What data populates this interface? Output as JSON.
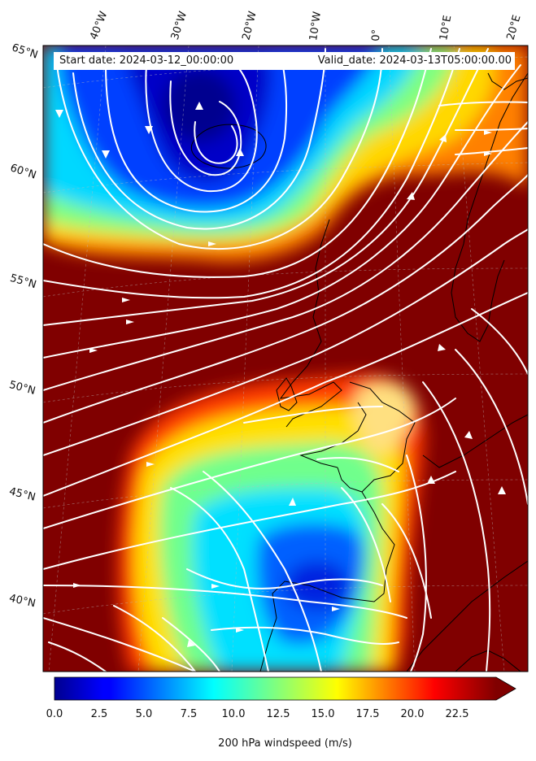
{
  "map": {
    "start_label": "Start date: 2024-03-12_00:00:00",
    "valid_label": "Valid_date: 2024-03-13T05:00:00.00",
    "longitude_labels": [
      "40°W",
      "30°W",
      "20°W",
      "10°W",
      "0°",
      "10°E",
      "20°E"
    ],
    "latitude_labels": [
      "65°N",
      "60°N",
      "55°N",
      "50°N",
      "45°N",
      "40°N"
    ],
    "colors": {
      "max_speed": "#800000",
      "min_speed": "#00008f",
      "streamline": "#ffffff",
      "coastline": "#000000"
    }
  },
  "colorbar": {
    "ticks": [
      "0.0",
      "2.5",
      "5.0",
      "7.5",
      "10.0",
      "12.5",
      "15.0",
      "17.5",
      "20.0",
      "22.5"
    ],
    "label": "200 hPa windspeed (m/s)",
    "range": [
      0,
      25
    ],
    "extend": "max",
    "colormap": "jet"
  }
}
